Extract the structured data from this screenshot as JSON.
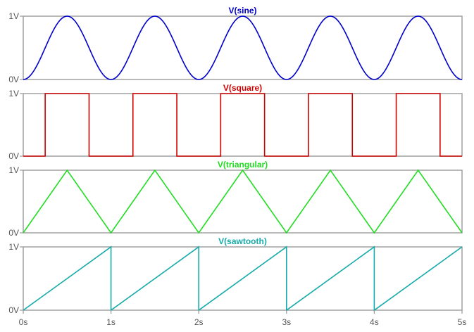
{
  "chart_data": [
    {
      "type": "line",
      "title": "V(sine)",
      "color": "#0000cc",
      "waveform": "sine",
      "period": 1,
      "amplitude_range": [
        0,
        1
      ],
      "x_unit": "s",
      "y_ticks": [
        "1V",
        "0V"
      ],
      "xlim": [
        0,
        5
      ],
      "ylim": [
        0,
        1
      ],
      "series": [
        {
          "x": [
            0,
            0.25,
            0.5,
            0.75,
            1,
            1.25,
            1.5,
            1.75,
            2,
            2.25,
            2.5,
            2.75,
            3,
            3.25,
            3.5,
            3.75,
            4,
            4.25,
            4.5,
            4.75,
            5
          ],
          "y": [
            0,
            0.5,
            1,
            0.5,
            0,
            0.5,
            1,
            0.5,
            0,
            0.5,
            1,
            0.5,
            0,
            0.5,
            1,
            0.5,
            0,
            0.5,
            1,
            0.5,
            0
          ]
        }
      ]
    },
    {
      "type": "line",
      "title": "V(square)",
      "color": "#cc0000",
      "waveform": "square",
      "x_unit": "s",
      "y_ticks": [
        "1V",
        "0V"
      ],
      "xlim": [
        0,
        5
      ],
      "ylim": [
        0,
        1
      ],
      "series": [
        {
          "x": [
            0,
            0.25,
            0.25,
            0.75,
            0.75,
            1.25,
            1.25,
            1.75,
            1.75,
            2.25,
            2.25,
            2.75,
            2.75,
            3.25,
            3.25,
            3.75,
            3.75,
            4.25,
            4.25,
            4.75,
            4.75,
            5
          ],
          "y": [
            0,
            0,
            1,
            1,
            0,
            0,
            1,
            1,
            0,
            0,
            1,
            1,
            0,
            0,
            1,
            1,
            0,
            0,
            1,
            1,
            0,
            0
          ]
        }
      ]
    },
    {
      "type": "line",
      "title": "V(triangular)",
      "color": "#22dd22",
      "waveform": "triangle",
      "x_unit": "s",
      "y_ticks": [
        "1V",
        "0V"
      ],
      "xlim": [
        0,
        5
      ],
      "ylim": [
        0,
        1
      ],
      "series": [
        {
          "x": [
            0,
            0.5,
            1,
            1.5,
            2,
            2.5,
            3,
            3.5,
            4,
            4.5,
            5
          ],
          "y": [
            0,
            1,
            0,
            1,
            0,
            1,
            0,
            1,
            0,
            1,
            0
          ]
        }
      ]
    },
    {
      "type": "line",
      "title": "V(sawtooth)",
      "color": "#16aaaa",
      "waveform": "sawtooth",
      "x_unit": "s",
      "y_ticks": [
        "1V",
        "0V"
      ],
      "xlim": [
        0,
        5
      ],
      "ylim": [
        0,
        1
      ],
      "series": [
        {
          "x": [
            0,
            1,
            1,
            2,
            2,
            3,
            3,
            4,
            4,
            5
          ],
          "y": [
            0,
            1,
            0,
            1,
            0,
            1,
            0,
            1,
            0,
            1
          ]
        }
      ]
    }
  ],
  "x_axis": {
    "ticks": [
      0,
      1,
      2,
      3,
      4,
      5
    ],
    "tick_labels": [
      "0s",
      "1s",
      "2s",
      "3s",
      "4s",
      "5s"
    ]
  },
  "frame_color": "#9a9a9a",
  "tick_color": "#555555"
}
